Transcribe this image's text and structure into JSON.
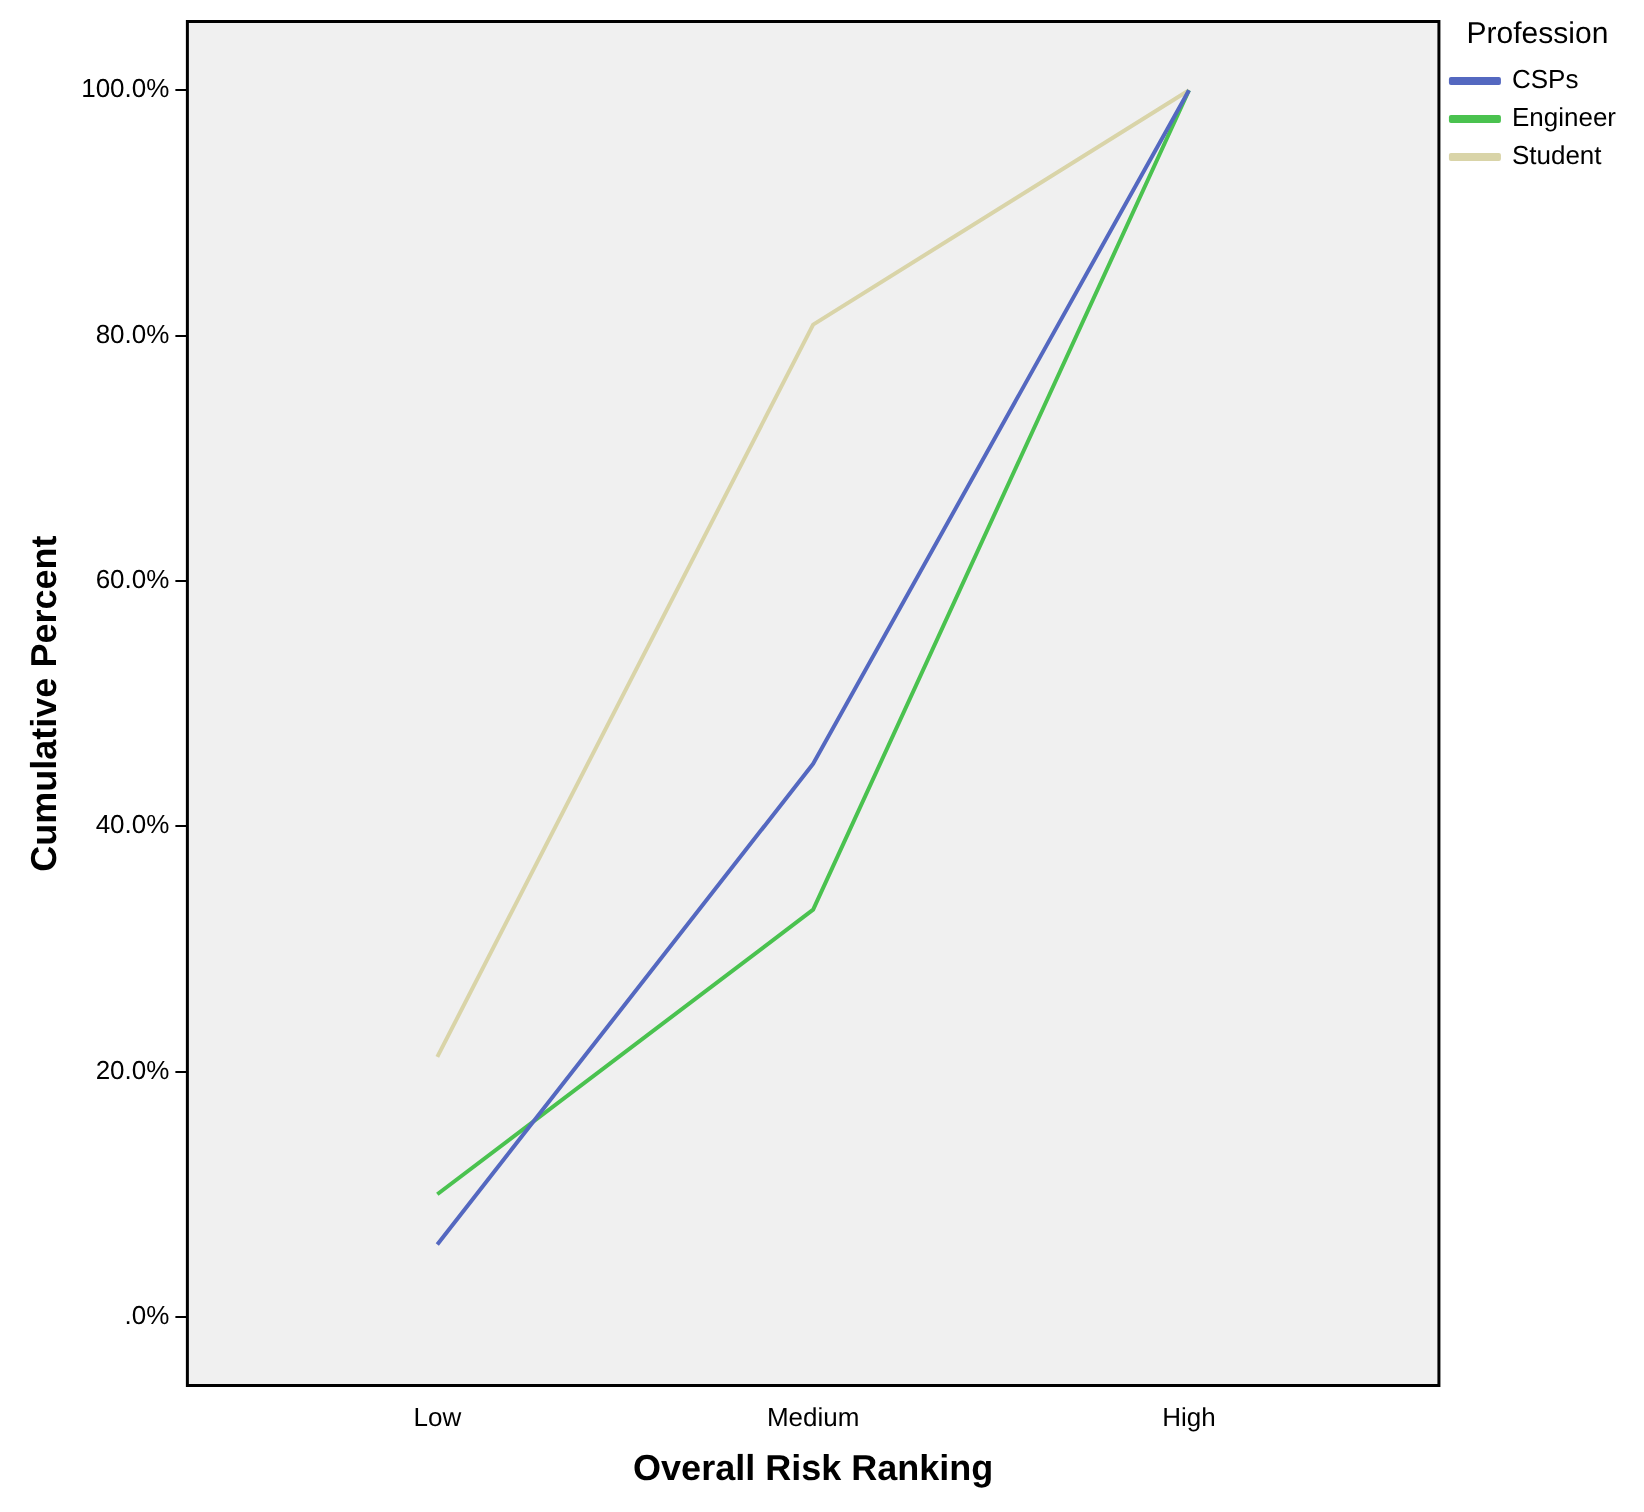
{
  "chart_data": {
    "type": "line",
    "xlabel": "Overall Risk Ranking",
    "ylabel": "Cumulative Percent",
    "legend_title": "Profession",
    "categories": [
      "Low",
      "Medium",
      "High"
    ],
    "series": [
      {
        "name": "CSPs",
        "color": "#5468c0",
        "values": [
          5.9,
          45.1,
          100
        ]
      },
      {
        "name": "Engineer",
        "color": "#4ac24f",
        "values": [
          10,
          33.2,
          100
        ]
      },
      {
        "name": "Student",
        "color": "#d9d4a8",
        "values": [
          21.2,
          80.9,
          100
        ]
      }
    ],
    "ylim": [
      -5.6,
      105.6
    ],
    "yticks": [
      {
        "value": 0,
        "label": ".0%"
      },
      {
        "value": 20,
        "label": "20.0%"
      },
      {
        "value": 40,
        "label": "40.0%"
      },
      {
        "value": 60,
        "label": "60.0%"
      },
      {
        "value": 80,
        "label": "80.0%"
      },
      {
        "value": 100,
        "label": "100.0%"
      }
    ],
    "grid": false,
    "legend": "right",
    "marker": "none",
    "line_style": "solid"
  }
}
